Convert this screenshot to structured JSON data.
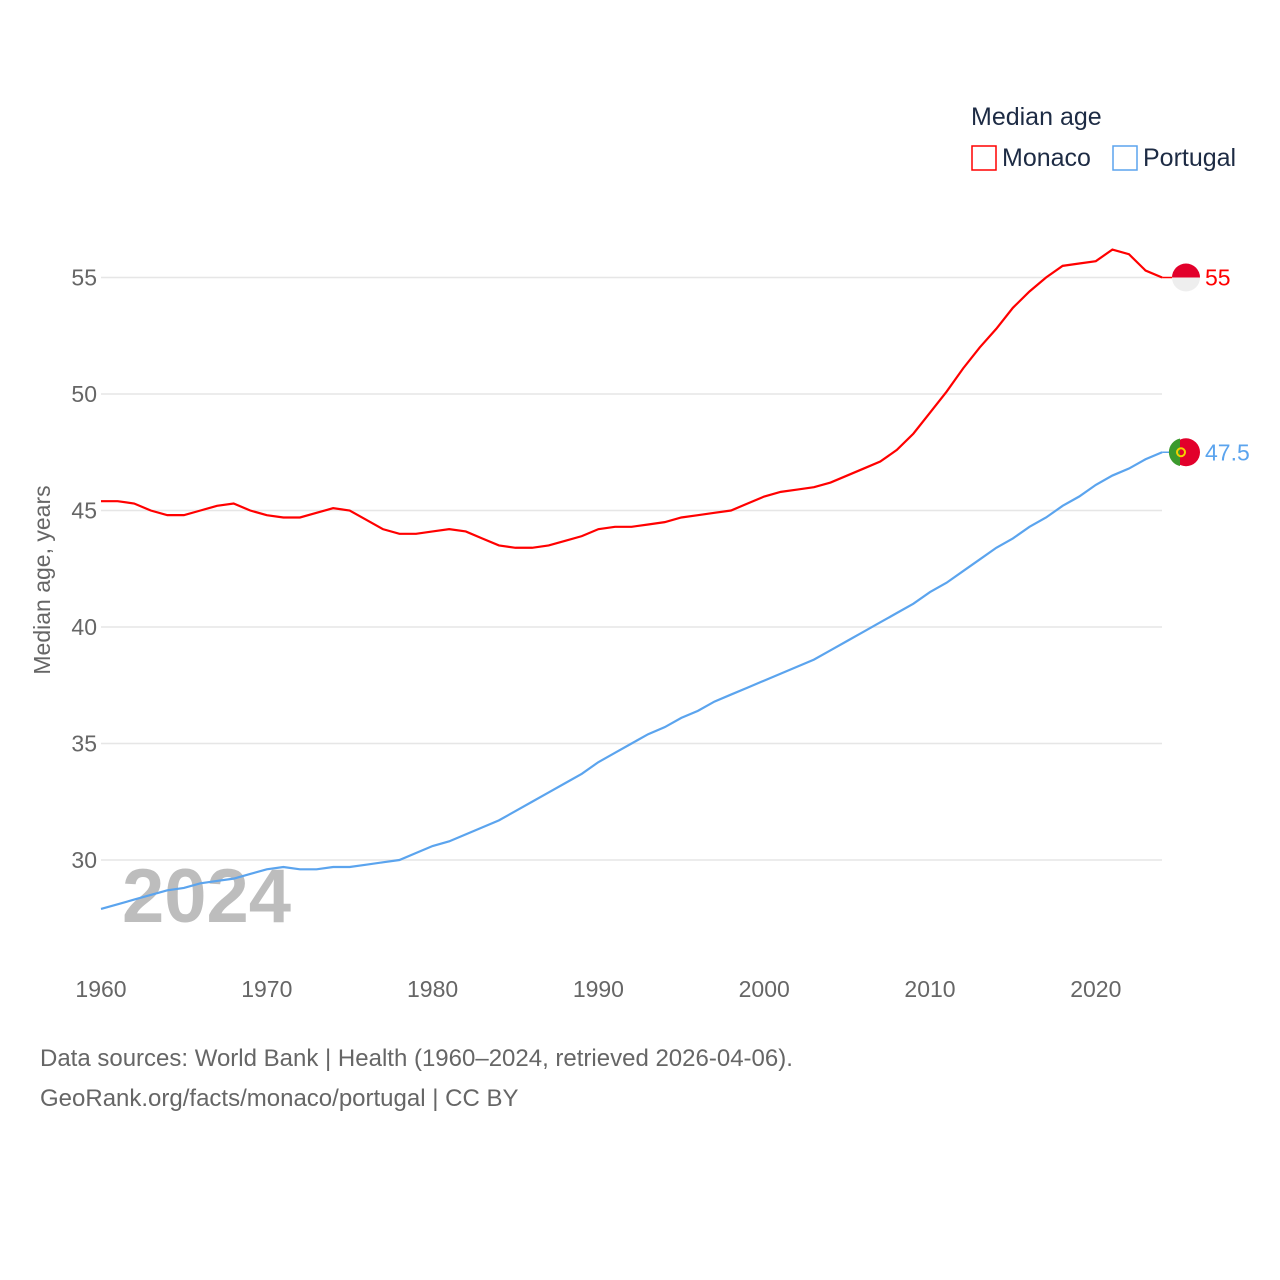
{
  "chart_data": {
    "type": "line",
    "title": "Median age",
    "ylabel": "Median age, years",
    "xlabel": "",
    "ylim": [
      26.6,
      57
    ],
    "xlim": [
      1960,
      2024
    ],
    "yticks": [
      30,
      35,
      40,
      45,
      50,
      55
    ],
    "xticks": [
      1960,
      1970,
      1980,
      1990,
      2000,
      2010,
      2020
    ],
    "grid": true,
    "legend_placement": "top-right",
    "year_watermark": "2024",
    "x": [
      1960,
      1961,
      1962,
      1963,
      1964,
      1965,
      1966,
      1967,
      1968,
      1969,
      1970,
      1971,
      1972,
      1973,
      1974,
      1975,
      1976,
      1977,
      1978,
      1979,
      1980,
      1981,
      1982,
      1983,
      1984,
      1985,
      1986,
      1987,
      1988,
      1989,
      1990,
      1991,
      1992,
      1993,
      1994,
      1995,
      1996,
      1997,
      1998,
      1999,
      2000,
      2001,
      2002,
      2003,
      2004,
      2005,
      2006,
      2007,
      2008,
      2009,
      2010,
      2011,
      2012,
      2013,
      2014,
      2015,
      2016,
      2017,
      2018,
      2019,
      2020,
      2021,
      2022,
      2023,
      2024
    ],
    "series": [
      {
        "name": "Monaco",
        "color": "#ff0000",
        "end_label": "55",
        "values": [
          45.4,
          45.4,
          45.3,
          45.0,
          44.8,
          44.8,
          45.0,
          45.2,
          45.3,
          45.0,
          44.8,
          44.7,
          44.7,
          44.9,
          45.1,
          45.0,
          44.6,
          44.2,
          44.0,
          44.0,
          44.1,
          44.2,
          44.1,
          43.8,
          43.5,
          43.4,
          43.4,
          43.5,
          43.7,
          43.9,
          44.2,
          44.3,
          44.3,
          44.4,
          44.5,
          44.7,
          44.8,
          44.9,
          45.0,
          45.3,
          45.6,
          45.8,
          45.9,
          46.0,
          46.2,
          46.5,
          46.8,
          47.1,
          47.6,
          48.3,
          49.2,
          50.1,
          51.1,
          52.0,
          52.8,
          53.7,
          54.4,
          55.0,
          55.5,
          55.6,
          55.7,
          56.2,
          56.0,
          55.3,
          55.0
        ]
      },
      {
        "name": "Portugal",
        "color": "#5ba4ee",
        "end_label": "47.5",
        "values": [
          27.9,
          28.1,
          28.3,
          28.5,
          28.7,
          28.8,
          29.0,
          29.1,
          29.2,
          29.4,
          29.6,
          29.7,
          29.6,
          29.6,
          29.7,
          29.7,
          29.8,
          29.9,
          30.0,
          30.3,
          30.6,
          30.8,
          31.1,
          31.4,
          31.7,
          32.1,
          32.5,
          32.9,
          33.3,
          33.7,
          34.2,
          34.6,
          35.0,
          35.4,
          35.7,
          36.1,
          36.4,
          36.8,
          37.1,
          37.4,
          37.7,
          38.0,
          38.3,
          38.6,
          39.0,
          39.4,
          39.8,
          40.2,
          40.6,
          41.0,
          41.5,
          41.9,
          42.4,
          42.9,
          43.4,
          43.8,
          44.3,
          44.7,
          45.2,
          45.6,
          46.1,
          46.5,
          46.8,
          47.2,
          47.5
        ]
      }
    ]
  },
  "footer": {
    "line1": "Data sources: World Bank | Health (1960–2024, retrieved 2026-04-06).",
    "line2": "GeoRank.org/facts/monaco/portugal | CC BY"
  }
}
